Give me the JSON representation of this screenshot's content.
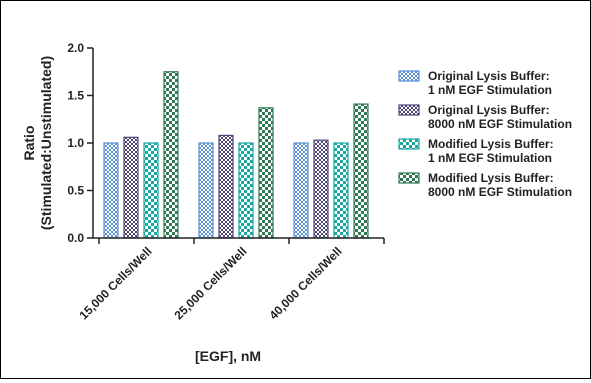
{
  "chart_data": {
    "type": "bar",
    "xlabel": "[EGF], nM",
    "ylabel_lines": [
      "Ratio",
      "(Stimulated:Unstimulated)"
    ],
    "ylim": [
      0,
      2.0
    ],
    "yticks": [
      "0.0",
      "0.5",
      "1.0",
      "1.5",
      "2.0"
    ],
    "categories": [
      "15,000 Cells/Well",
      "25,000 Cells/Well",
      "40,000 Cells/Well"
    ],
    "series": [
      {
        "name_lines": [
          "Original Lysis Buffer:",
          "1 nM EGF Stimulation"
        ],
        "values": [
          1.0,
          1.0,
          1.0
        ],
        "color": "#5b8fd6",
        "pattern": "fine-check"
      },
      {
        "name_lines": [
          "Original Lysis Buffer:",
          "8000 nM EGF Stimulation"
        ],
        "values": [
          1.06,
          1.08,
          1.03
        ],
        "color": "#4e4577",
        "pattern": "fine-check"
      },
      {
        "name_lines": [
          "Modified Lysis Buffer:",
          "1 nM EGF Stimulation"
        ],
        "values": [
          1.0,
          1.0,
          1.0
        ],
        "color": "#19a7a3",
        "pattern": "coarse-check"
      },
      {
        "name_lines": [
          "Modified Lysis Buffer:",
          "8000 nM EGF Stimulation"
        ],
        "values": [
          1.75,
          1.37,
          1.41
        ],
        "color": "#2f7a52",
        "pattern": "coarse-check"
      }
    ],
    "legend_position": "right",
    "grid": false
  }
}
